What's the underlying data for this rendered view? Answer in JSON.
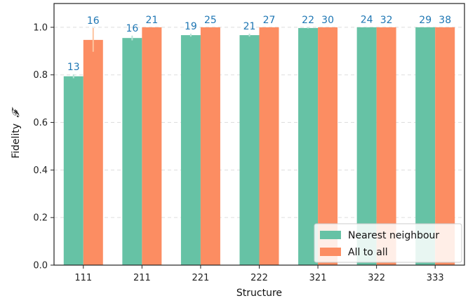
{
  "chart_data": {
    "type": "bar",
    "categories": [
      "111",
      "211",
      "221",
      "222",
      "321",
      "322",
      "333"
    ],
    "series": [
      {
        "name": "Nearest neighbour",
        "color": "#66c2a5",
        "values": [
          0.794,
          0.955,
          0.967,
          0.967,
          0.997,
          1.0,
          1.0
        ],
        "errors": [
          0.008,
          0.01,
          0.006,
          0.006,
          0.002,
          0.001,
          0.0
        ],
        "labels": [
          "13",
          "16",
          "19",
          "21",
          "22",
          "24",
          "29"
        ]
      },
      {
        "name": "All to all",
        "color": "#fc8d62",
        "values": [
          0.947,
          1.0,
          1.0,
          1.0,
          1.0,
          1.0,
          1.0
        ],
        "errors": [
          0.05,
          0.0,
          0.0,
          0.0,
          0.0,
          0.0,
          0.0
        ],
        "labels": [
          "16",
          "21",
          "25",
          "27",
          "30",
          "32",
          "38"
        ]
      }
    ],
    "xlabel": "Structure",
    "ylabel": "Fidelity",
    "ylabel_symbol": "𝓕",
    "ylim": [
      0,
      1.1
    ],
    "yticks": [
      "0.0",
      "0.2",
      "0.4",
      "0.6",
      "0.8",
      "1.0"
    ],
    "grid": "horizontal dashed",
    "legend_position": "bottom-right",
    "label_color": "#1f77b4"
  }
}
